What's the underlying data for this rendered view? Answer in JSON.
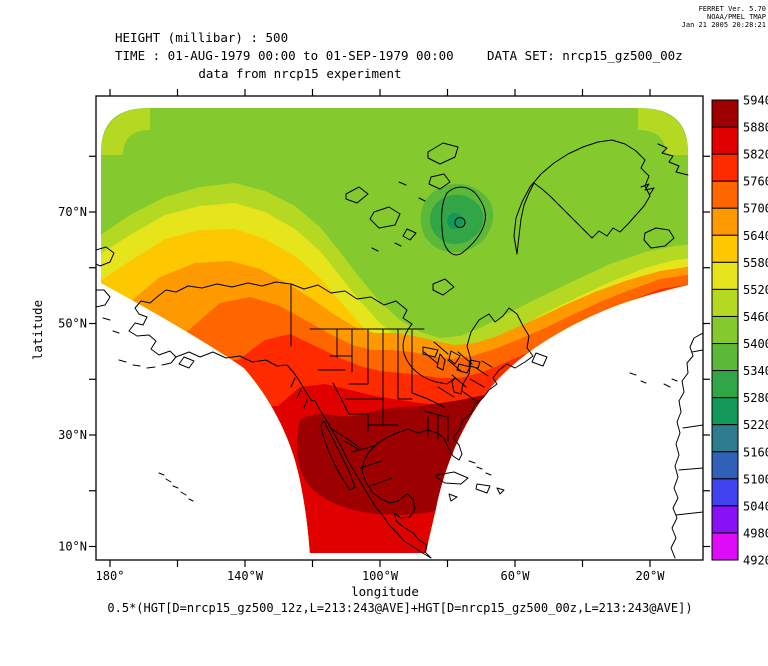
{
  "header": {
    "variable_line": "HEIGHT (millibar) : 500",
    "time_line": "TIME : 01-AUG-1979 00:00 to 01-SEP-1979 00:00",
    "dataset_line": "DATA SET: nrcp15_gz500_00z",
    "subtitle": "data from nrcp15 experiment"
  },
  "stamp": {
    "line1": "FERRET Ver. 5.70",
    "line2": "NOAA/PMEL TMAP",
    "line3": "Jan 21 2005 20:28:21",
    "color": "#aa1111"
  },
  "axes": {
    "x_label": "longitude",
    "y_label": "latitude",
    "x_major_ticks": [
      {
        "lon": 180,
        "label": "180°"
      },
      {
        "lon": 140,
        "label": "140°W"
      },
      {
        "lon": 100,
        "label": "100°W"
      },
      {
        "lon": 60,
        "label": "60°W"
      },
      {
        "lon": 20,
        "label": "20°W"
      }
    ],
    "x_minor_ticks": [
      160,
      120,
      80,
      40
    ],
    "y_major_ticks": [
      {
        "lat": 70,
        "label": "70°N"
      },
      {
        "lat": 50,
        "label": "50°N"
      },
      {
        "lat": 30,
        "label": "30°N"
      },
      {
        "lat": 10,
        "label": "10°N"
      }
    ],
    "y_minor_ticks": [
      80,
      60,
      40,
      20
    ]
  },
  "colorbar": {
    "labels": [
      "5940",
      "5880",
      "5820",
      "5760",
      "5700",
      "5640",
      "5580",
      "5520",
      "5460",
      "5400",
      "5340",
      "5280",
      "5220",
      "5160",
      "5100",
      "5040",
      "4980",
      "4920"
    ],
    "colors": [
      "#9c0000",
      "#e00000",
      "#ff2a00",
      "#ff6600",
      "#ff9900",
      "#fdc800",
      "#e6e41a",
      "#b5d922",
      "#84c92e",
      "#5cb838",
      "#32a646",
      "#12995a",
      "#2d7d8e",
      "#3060b8",
      "#4143f0",
      "#8812f5",
      "#dd0cf8"
    ]
  },
  "footer": {
    "formula": "0.5*(HGT[D=nrcp15_gz500_12z,L=213:243@AVE]+HGT[D=nrcp15_gz500_00z,L=213:243@AVE])"
  },
  "chart_data": {
    "type": "heatmap",
    "subtype": "filled-contour-map",
    "title": "data from nrcp15 experiment",
    "variable": "HEIGHT (millibar) : 500",
    "time_range": "01-AUG-1979 00:00 to 01-SEP-1979 00:00",
    "dataset": "nrcp15_gz500_00z",
    "xlabel": "longitude",
    "ylabel": "latitude",
    "x_tick_labels": [
      "180°",
      "140°W",
      "100°W",
      "60°W",
      "20°W"
    ],
    "y_tick_labels": [
      "70°N",
      "50°N",
      "30°N",
      "10°N"
    ],
    "contour_interval": 60,
    "levels": [
      4920,
      4980,
      5040,
      5100,
      5160,
      5220,
      5280,
      5340,
      5400,
      5460,
      5520,
      5580,
      5640,
      5700,
      5760,
      5820,
      5880,
      5940
    ],
    "level_colors_high_to_low": [
      "#9c0000",
      "#e00000",
      "#ff2a00",
      "#ff6600",
      "#ff9900",
      "#fdc800",
      "#e6e41a",
      "#b5d922",
      "#84c92e",
      "#5cb838",
      "#32a646",
      "#12995a",
      "#2d7d8e",
      "#3060b8",
      "#4143f0",
      "#8812f5",
      "#dd0cf8"
    ],
    "legend_position": "right",
    "grid": false,
    "region_values": {
      "arctic_canada_baffin_minimum": "5220-5340",
      "high_arctic_band": "5340-5460",
      "alaska_subarctic_band": "5460-5640",
      "canada_midlatitude_band": "5580-5760",
      "northern_us_band": "5760-5880",
      "southern_us_mexico_maximum": "5880-5940",
      "deep_tropics_bottom_band": "5820-5880"
    },
    "notes": "Curved regional-model data domain; white areas inside axes have no data. Coastlines and US state borders overlaid."
  }
}
